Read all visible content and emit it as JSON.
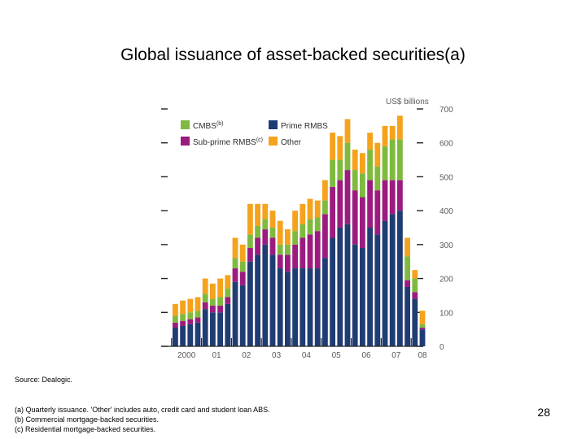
{
  "slide": {
    "title": "Global issuance of asset-backed securities(a)",
    "source": "Source: Dealogic.",
    "notes": [
      "(a) Quarterly issuance. 'Other' includes auto, credit card and student loan ABS.",
      "(b) Commercial mortgage-backed securities.",
      "(c) Residential mortgage-backed securities."
    ],
    "page_number": "28"
  },
  "chart_data": {
    "type": "bar",
    "stacked": true,
    "unit_label": "US$ billions",
    "ylim": [
      0,
      700
    ],
    "yticks": [
      "0",
      "100",
      "200",
      "300",
      "400",
      "500",
      "600",
      "700"
    ],
    "x_tick_labels": [
      "2000",
      "01",
      "02",
      "03",
      "04",
      "05",
      "06",
      "07",
      "08"
    ],
    "x_tick_quarter_index": [
      1.5,
      5.5,
      9.5,
      13.5,
      17.5,
      21.5,
      25.5,
      29.5,
      33
    ],
    "grid": false,
    "legend": {
      "position": "top-left",
      "entries": [
        {
          "key": "cmbs",
          "label": "CMBS",
          "sup": "(b)"
        },
        {
          "key": "prime",
          "label": "Prime RMBS",
          "sup": ""
        },
        {
          "key": "subprime",
          "label": "Sub-prime RMBS",
          "sup": "(c)"
        },
        {
          "key": "other",
          "label": "Other",
          "sup": ""
        }
      ]
    },
    "colors": {
      "prime": "#1f3c73",
      "subprime": "#9b1c7e",
      "cmbs": "#7fba3e",
      "other": "#f5a21c"
    },
    "stack_order": [
      "prime",
      "subprime",
      "cmbs",
      "other"
    ],
    "series": [
      {
        "key": "prime",
        "name": "Prime RMBS",
        "values": [
          55,
          60,
          65,
          70,
          110,
          100,
          100,
          125,
          190,
          180,
          250,
          270,
          300,
          270,
          230,
          220,
          230,
          230,
          230,
          230,
          260,
          320,
          350,
          360,
          300,
          290,
          350,
          330,
          370,
          390,
          400,
          175,
          140,
          50
        ]
      },
      {
        "key": "subprime",
        "name": "Sub-prime RMBS",
        "values": [
          15,
          15,
          15,
          15,
          20,
          20,
          20,
          20,
          40,
          40,
          40,
          50,
          45,
          50,
          40,
          50,
          70,
          90,
          100,
          110,
          130,
          150,
          140,
          160,
          160,
          150,
          140,
          130,
          120,
          100,
          90,
          20,
          20,
          5
        ]
      },
      {
        "key": "cmbs",
        "name": "CMBS",
        "values": [
          20,
          20,
          20,
          20,
          25,
          20,
          25,
          25,
          30,
          30,
          40,
          35,
          30,
          30,
          30,
          30,
          40,
          40,
          45,
          40,
          40,
          80,
          60,
          80,
          60,
          70,
          90,
          70,
          100,
          120,
          120,
          70,
          40,
          10
        ]
      },
      {
        "key": "other",
        "name": "Other",
        "values": [
          35,
          40,
          40,
          40,
          45,
          45,
          55,
          40,
          60,
          50,
          90,
          65,
          45,
          50,
          70,
          45,
          60,
          60,
          60,
          50,
          60,
          80,
          70,
          70,
          60,
          60,
          50,
          70,
          60,
          40,
          70,
          55,
          25,
          40
        ]
      }
    ]
  }
}
